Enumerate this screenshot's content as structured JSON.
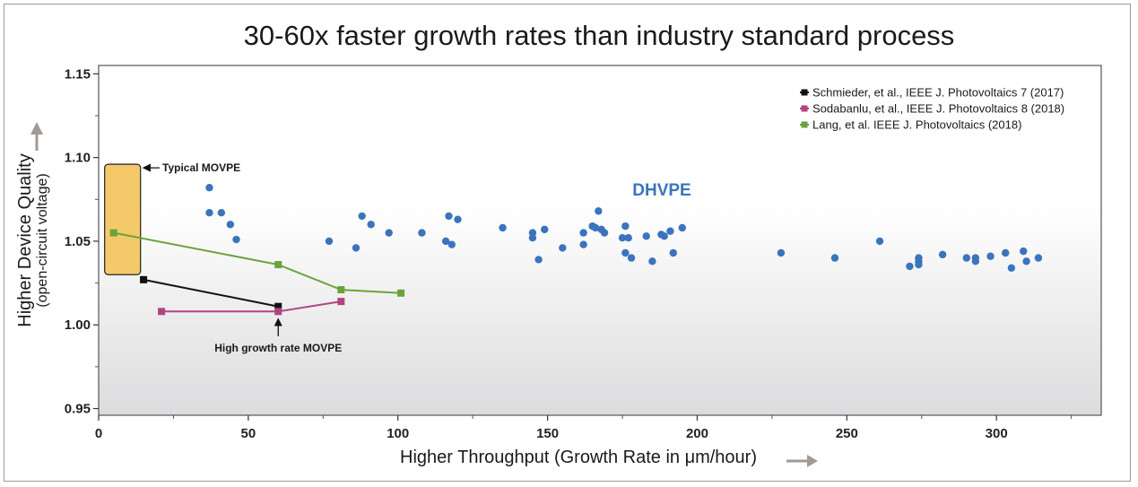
{
  "chart_data": {
    "type": "scatter",
    "title": "30-60x faster growth rates than industry standard process",
    "xlabel": "Higher Throughput (Growth Rate in μm/hour)",
    "ylabel": "Higher Device Quality",
    "ylabel_sub": "(open-circuit voltage)",
    "xlim": [
      0,
      335
    ],
    "ylim": [
      0.946,
      1.155
    ],
    "x_ticks": [
      0,
      50,
      100,
      150,
      200,
      250,
      300
    ],
    "y_ticks": [
      0.95,
      1.0,
      1.05,
      1.1,
      1.15
    ],
    "y_tick_labels": [
      "0.95",
      "1.00",
      "1.05",
      "1.10",
      "1.15"
    ],
    "grid": false,
    "legend_position": "top-right",
    "series": [
      {
        "name": "Schmieder, et al., IEEE J. Photovoltaics 7 (2017)",
        "kind": "line",
        "color": "#111111",
        "x": [
          15,
          60
        ],
        "y": [
          1.027,
          1.011
        ]
      },
      {
        "name": "Sodabanlu, et al., IEEE J. Photovoltaics 8 (2018)",
        "kind": "line",
        "color": "#b0447e",
        "x": [
          21,
          60,
          81
        ],
        "y": [
          1.008,
          1.008,
          1.014
        ]
      },
      {
        "name": "Lang, et al. IEEE J. Photovoltaics (2018)",
        "kind": "line",
        "color": "#6aa33c",
        "x": [
          5,
          60,
          81,
          101
        ],
        "y": [
          1.055,
          1.036,
          1.021,
          1.019
        ]
      },
      {
        "name": "DHVPE",
        "kind": "scatter",
        "color": "#3a74bd",
        "x": [
          37,
          37,
          41,
          44,
          46,
          77,
          86,
          88,
          91,
          97,
          108,
          116,
          117,
          118,
          120,
          135,
          145,
          145,
          147,
          149,
          155,
          162,
          162,
          165,
          166,
          167,
          168,
          169,
          175,
          176,
          176,
          177,
          178,
          183,
          185,
          188,
          189,
          191,
          192,
          195,
          228,
          246,
          261,
          271,
          274,
          274,
          274,
          282,
          290,
          293,
          293,
          298,
          303,
          305,
          309,
          310,
          314
        ],
        "y": [
          1.082,
          1.067,
          1.067,
          1.06,
          1.051,
          1.05,
          1.046,
          1.065,
          1.06,
          1.055,
          1.055,
          1.05,
          1.065,
          1.048,
          1.063,
          1.058,
          1.055,
          1.052,
          1.039,
          1.057,
          1.046,
          1.055,
          1.048,
          1.059,
          1.058,
          1.068,
          1.057,
          1.055,
          1.052,
          1.059,
          1.043,
          1.052,
          1.04,
          1.053,
          1.038,
          1.054,
          1.053,
          1.056,
          1.043,
          1.058,
          1.043,
          1.04,
          1.05,
          1.035,
          1.04,
          1.038,
          1.036,
          1.042,
          1.04,
          1.04,
          1.038,
          1.041,
          1.043,
          1.034,
          1.044,
          1.038,
          1.04
        ]
      }
    ],
    "annotations": {
      "typical_movpe": "Typical MOVPE",
      "typical_movpe_box": {
        "x": [
          2,
          14
        ],
        "y": [
          1.03,
          1.096
        ],
        "color": "#f3c96a"
      },
      "high_growth_movpe": "High growth rate MOVPE",
      "dhvpe_label": "DHVPE"
    }
  }
}
